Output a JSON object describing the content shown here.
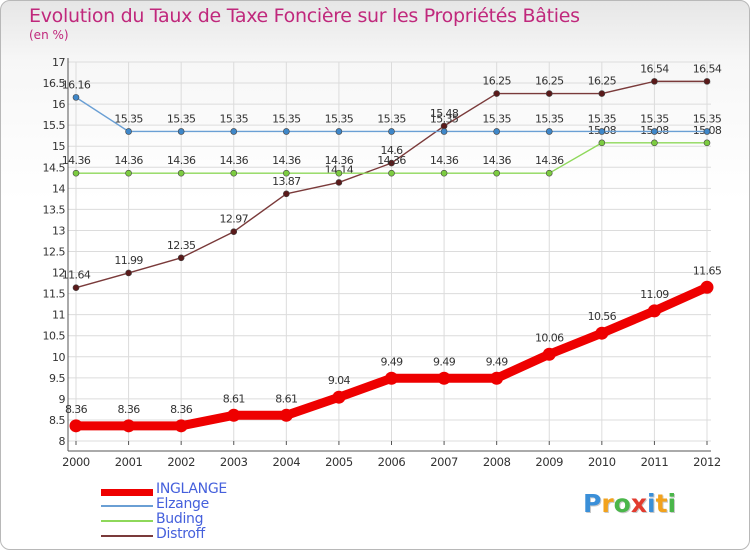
{
  "header": {
    "title": "Evolution du Taux de Taxe Foncière sur les Propriétés Bâties",
    "unit": "(en %)"
  },
  "logo": {
    "text": "Proxiti",
    "letter_colors": [
      "#3a8fd8",
      "#f2a21c",
      "#4ab64a",
      "#e23b2f",
      "#3a8fd8",
      "#f2a21c",
      "#4ab64a"
    ]
  },
  "colors": {
    "grid": "#dcdcdc",
    "axis": "#555555",
    "tick_label": "#333333",
    "point_label": "#333333"
  },
  "chart_data": {
    "type": "line",
    "title": "Evolution du Taux de Taxe Foncière sur les Propriétés Bâties",
    "ylabel": "(en %)",
    "xlabel": "",
    "x": [
      "2000",
      "2001",
      "2002",
      "2003",
      "2004",
      "2005",
      "2006",
      "2007",
      "2008",
      "2009",
      "2010",
      "2011",
      "2012"
    ],
    "ylim": [
      8,
      17
    ],
    "yticks": [
      "8",
      "8.5",
      "9",
      "9.5",
      "10",
      "10.5",
      "11",
      "11.5",
      "12",
      "12.5",
      "13",
      "13.5",
      "14",
      "14.5",
      "15",
      "15.5",
      "16",
      "16.5",
      "17"
    ],
    "grid": true,
    "legend_position": "bottom-left",
    "series": [
      {
        "name": "INGLANGE",
        "color": "#ee0000",
        "emphasis": "thick",
        "values": [
          8.36,
          8.36,
          8.36,
          8.61,
          8.61,
          9.04,
          9.49,
          9.49,
          9.49,
          10.06,
          10.56,
          11.09,
          11.65
        ],
        "labels": [
          "8.36",
          "8.36",
          "8.36",
          "8.61",
          "8.61",
          "9.04",
          "9.49",
          "9.49",
          "9.49",
          "10.06",
          "10.56",
          "11.09",
          "11.65"
        ]
      },
      {
        "name": "Elzange",
        "color": "#6a9fd4",
        "marker_color": "#3f87c9",
        "emphasis": "thin",
        "values": [
          16.16,
          15.35,
          15.35,
          15.35,
          15.35,
          15.35,
          15.35,
          15.35,
          15.35,
          15.35,
          15.35,
          15.35,
          15.35
        ],
        "labels": [
          "16.16",
          "15.35",
          "15.35",
          "15.35",
          "15.35",
          "15.35",
          "15.35",
          "15.35",
          "15.35",
          "15.35",
          "15.35",
          "15.35",
          "15.35"
        ]
      },
      {
        "name": "Buding",
        "color": "#8ed85a",
        "marker_color": "#7ccc40",
        "emphasis": "thin",
        "values": [
          14.36,
          14.36,
          14.36,
          14.36,
          14.36,
          14.36,
          14.36,
          14.36,
          14.36,
          14.36,
          15.08,
          15.08,
          15.08
        ],
        "labels": [
          "14.36",
          "14.36",
          "14.36",
          "14.36",
          "14.36",
          "14.36",
          "14.36",
          "14.36",
          "14.36",
          "14.36",
          "15.08",
          "15.08",
          "15.08"
        ]
      },
      {
        "name": "Distroff",
        "color": "#7a3a3a",
        "marker_color": "#5a1a1a",
        "emphasis": "thin",
        "values": [
          11.64,
          11.99,
          12.35,
          12.97,
          13.87,
          14.14,
          14.6,
          15.48,
          16.25,
          16.25,
          16.25,
          16.54,
          16.54
        ],
        "labels": [
          "11.64",
          "11.99",
          "12.35",
          "12.97",
          "13.87",
          "14.14",
          "14.6",
          "15.48",
          "16.25",
          "16.25",
          "16.25",
          "16.54",
          "16.54"
        ]
      }
    ]
  }
}
